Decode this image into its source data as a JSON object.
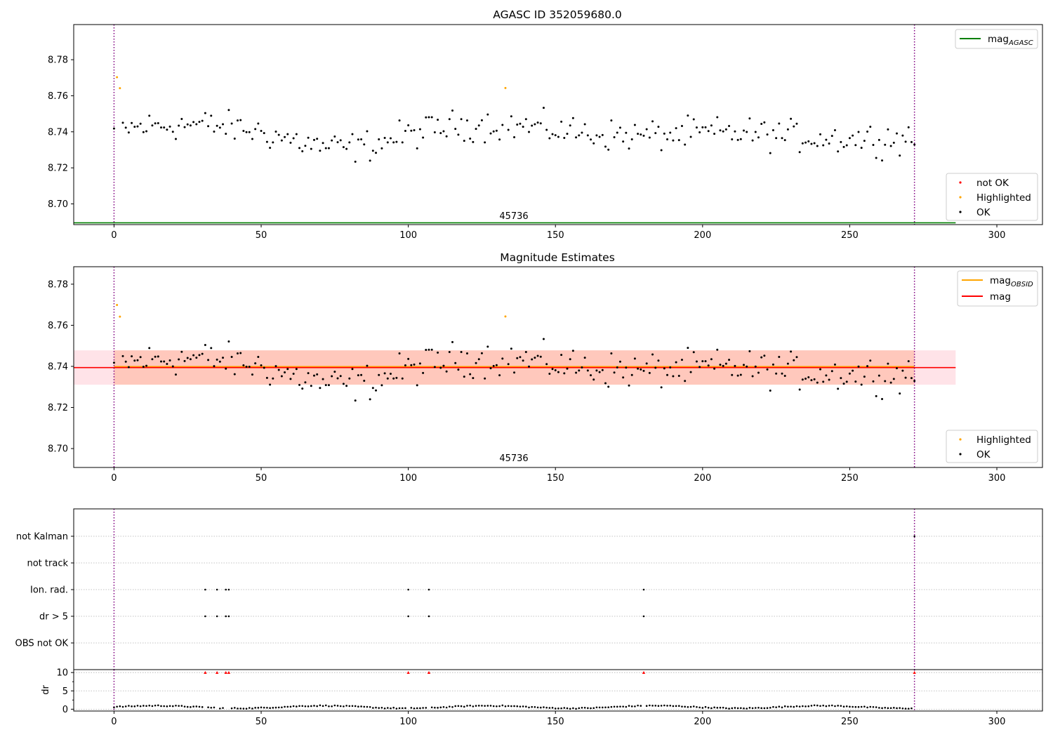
{
  "chart_data": [
    {
      "type": "scatter",
      "title": "AGASC ID 352059680.0",
      "xlim": [
        -13.7,
        315.5
      ],
      "ylim": [
        8.6885,
        8.7995
      ],
      "xticks": [
        0,
        50,
        100,
        150,
        200,
        250,
        300
      ],
      "yticks": [
        "8.70",
        "8.72",
        "8.74",
        "8.76",
        "8.78"
      ],
      "ytick_values": [
        8.7,
        8.72,
        8.74,
        8.76,
        8.78
      ],
      "obsid_label": "45736",
      "obsid_label_x": 136,
      "obsid_boundaries": [
        0,
        272
      ],
      "mag_agasc": {
        "value": 8.6895,
        "x_range": [
          -13.7,
          286
        ],
        "color": "#008000"
      },
      "legend_top": [
        {
          "label": "mag",
          "subscript": "AGASC",
          "color": "#008000",
          "kind": "line"
        }
      ],
      "legend_bottom": [
        {
          "label": "not OK",
          "color": "#ff0000",
          "kind": "dot"
        },
        {
          "label": "Highlighted",
          "color": "#ffa500",
          "kind": "dot"
        },
        {
          "label": "OK",
          "color": "#000000",
          "kind": "dot"
        }
      ],
      "highlighted": [
        [
          1,
          8.7703
        ],
        [
          2,
          8.7642
        ],
        [
          133,
          8.7643
        ]
      ]
    },
    {
      "type": "scatter",
      "title": "Magnitude Estimates",
      "xlim": [
        -13.7,
        315.5
      ],
      "ylim": [
        8.6908,
        8.7885
      ],
      "xticks": [
        0,
        50,
        100,
        150,
        200,
        250,
        300
      ],
      "yticks": [
        "8.70",
        "8.72",
        "8.74",
        "8.76",
        "8.78"
      ],
      "ytick_values": [
        8.7,
        8.72,
        8.74,
        8.76,
        8.78
      ],
      "obsid_label": "45736",
      "obsid_label_x": 136,
      "obsid_boundaries": [
        0,
        272
      ],
      "mag_obsid": {
        "value": 8.7398,
        "x_range": [
          0,
          272
        ],
        "color": "#ffa500"
      },
      "mag": {
        "value": 8.7394,
        "x_range": [
          -13.7,
          286
        ],
        "color": "#ff0000"
      },
      "band_mag": {
        "low": 8.7311,
        "high": 8.7478,
        "x_range": [
          -13.7,
          286
        ],
        "color": "#ffc0cb"
      },
      "band_obsid": {
        "low": 8.7311,
        "high": 8.7478,
        "x_range": [
          0,
          272
        ],
        "color": "#ffa07a"
      },
      "legend_top": [
        {
          "label": "mag",
          "subscript": "OBSID",
          "color": "#ffa500",
          "kind": "line"
        },
        {
          "label": "mag",
          "subscript": "",
          "color": "#ff0000",
          "kind": "line"
        }
      ],
      "legend_bottom": [
        {
          "label": "Highlighted",
          "color": "#ffa500",
          "kind": "dot"
        },
        {
          "label": "OK",
          "color": "#000000",
          "kind": "dot"
        }
      ],
      "highlighted": [
        [
          1,
          8.7699
        ],
        [
          2,
          8.7642
        ],
        [
          133,
          8.7643
        ]
      ]
    },
    {
      "type": "scatter",
      "title": "",
      "xlim": [
        -13.7,
        315.5
      ],
      "xticks": [
        0,
        50,
        100,
        150,
        200,
        250,
        300
      ],
      "flag_labels": [
        "not Kalman",
        "not track",
        "Ion. rad.",
        "dr > 5",
        "OBS not OK"
      ],
      "flags": {
        "not Kalman": [
          272
        ],
        "not track": [],
        "Ion. rad.": [
          31,
          35,
          38,
          39,
          100,
          107,
          180
        ],
        "dr > 5": [
          31,
          35,
          38,
          39,
          100,
          107,
          180
        ],
        "OBS not OK": []
      },
      "obsid_boundaries": [
        0,
        272
      ]
    },
    {
      "type": "scatter",
      "title": "",
      "xlim": [
        -13.7,
        315.5
      ],
      "ylim": [
        -0.5,
        10.8
      ],
      "ylabel": "dr",
      "xticks": [
        0,
        50,
        100,
        150,
        200,
        250,
        300
      ],
      "yticks": [
        "0",
        "5",
        "10"
      ],
      "ytick_values": [
        0,
        5,
        10
      ],
      "dr_clipped_value": 10,
      "dr_clipped_points": [
        31,
        35,
        38,
        39,
        100,
        107,
        180,
        272
      ],
      "marker_colors": {
        "ok": "#000000",
        "clipped": "#ff0000"
      },
      "obsid_boundaries": [
        0,
        272
      ]
    }
  ]
}
